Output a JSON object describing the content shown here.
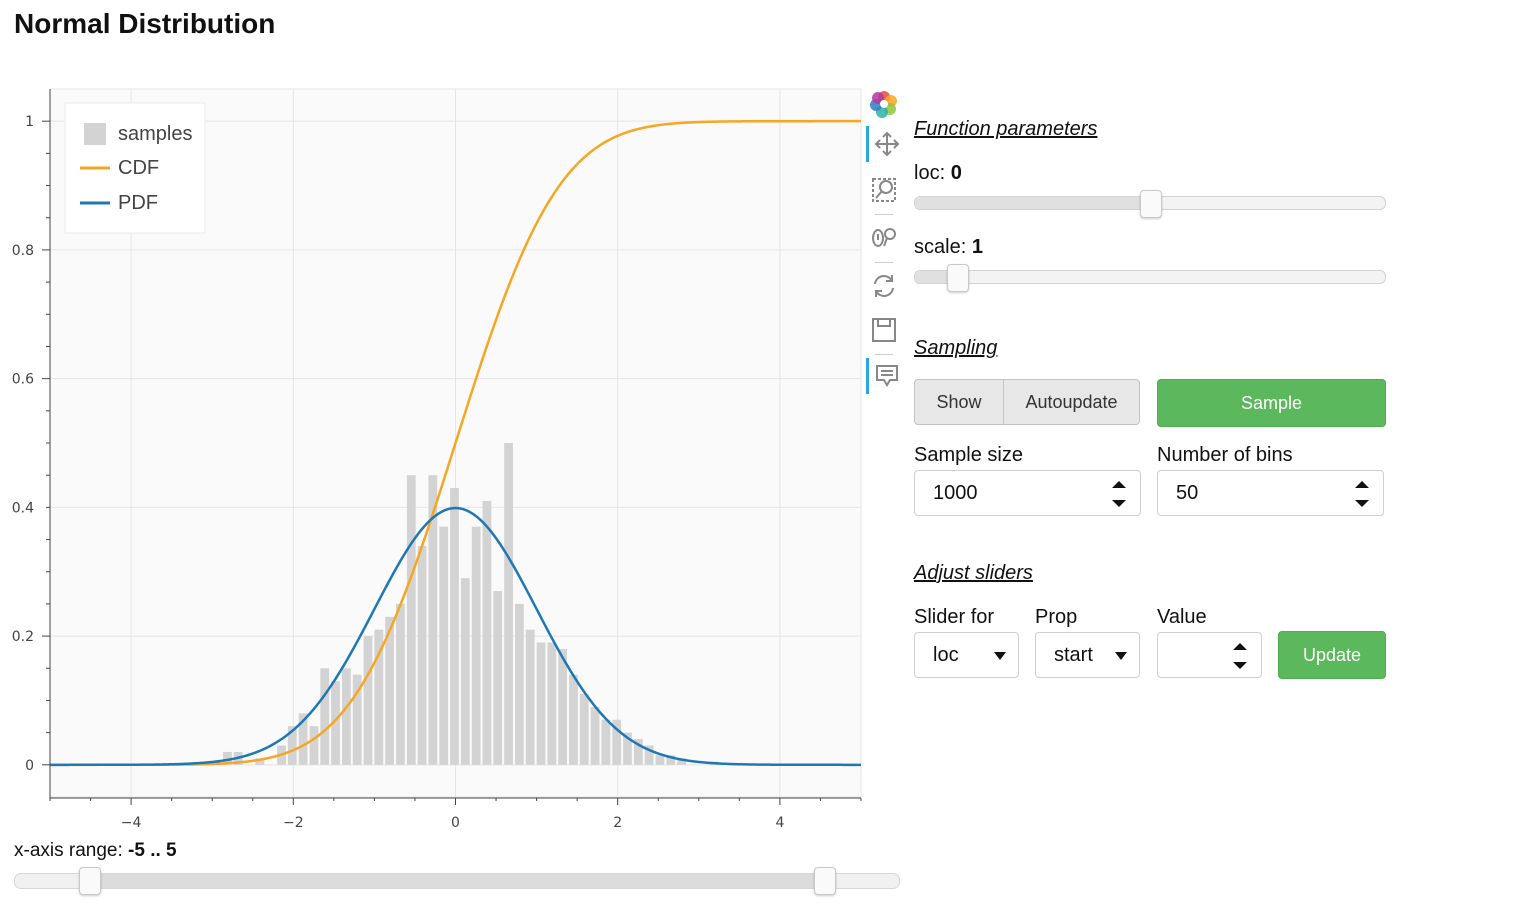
{
  "page_title": "Normal Distribution",
  "colors": {
    "cdf": "#f5a623",
    "pdf": "#1f77b4",
    "bars": "#d3d3d3",
    "accent_green": "#5cb85c",
    "active_tool": "#26aae1"
  },
  "toolbar": {
    "tools": [
      "bokeh-logo-icon",
      "pan-icon",
      "box-zoom-icon",
      "wheel-zoom-icon",
      "reset-icon",
      "save-icon",
      "hover-icon"
    ]
  },
  "xrange": {
    "label": "x-axis range: ",
    "value": "-5 .. 5",
    "start": -5,
    "end": 5
  },
  "function_parameters": {
    "title": "Function parameters",
    "loc": {
      "label": "loc: ",
      "value": "0",
      "min": -5,
      "max": 5,
      "current": 0
    },
    "scale": {
      "label": "scale: ",
      "value": "1",
      "min": 0.5,
      "max": 10,
      "current": 1
    }
  },
  "sampling": {
    "title": "Sampling",
    "show_label": "Show",
    "autoupdate_label": "Autoupdate",
    "sample_label": "Sample",
    "sample_size_label": "Sample size",
    "sample_size_value": "1000",
    "bins_label": "Number of bins",
    "bins_value": "50"
  },
  "adjust_sliders": {
    "title": "Adjust sliders",
    "slider_for_label": "Slider for",
    "slider_for_value": "loc",
    "prop_label": "Prop",
    "prop_value": "start",
    "value_label": "Value",
    "value_value": "",
    "update_label": "Update"
  },
  "chart_data": {
    "type": "line",
    "title": "",
    "xlabel": "",
    "ylabel": "",
    "xlim": [
      -5,
      5
    ],
    "ylim": [
      -0.05,
      1.05
    ],
    "x_ticks": [
      -4,
      -2,
      0,
      2,
      4
    ],
    "y_ticks": [
      0,
      0.2,
      0.4,
      0.6,
      0.8,
      1
    ],
    "grid": true,
    "legend_position": "top-left",
    "legend": [
      "samples",
      "CDF",
      "PDF"
    ],
    "series": [
      {
        "name": "CDF",
        "kind": "line",
        "function": "normal_cdf",
        "loc": 0,
        "scale": 1
      },
      {
        "name": "PDF",
        "kind": "line",
        "function": "normal_pdf",
        "loc": 0,
        "scale": 1
      }
    ],
    "histogram": {
      "name": "samples",
      "bin_width": 0.133,
      "bins": [
        {
          "x": -2.8,
          "y": 0.02
        },
        {
          "x": -2.667,
          "y": 0.02
        },
        {
          "x": -2.4,
          "y": 0.01
        },
        {
          "x": -2.133,
          "y": 0.03
        },
        {
          "x": -2.0,
          "y": 0.06
        },
        {
          "x": -1.867,
          "y": 0.08
        },
        {
          "x": -1.733,
          "y": 0.06
        },
        {
          "x": -1.6,
          "y": 0.15
        },
        {
          "x": -1.467,
          "y": 0.13
        },
        {
          "x": -1.333,
          "y": 0.15
        },
        {
          "x": -1.2,
          "y": 0.14
        },
        {
          "x": -1.067,
          "y": 0.2
        },
        {
          "x": -0.933,
          "y": 0.21
        },
        {
          "x": -0.8,
          "y": 0.23
        },
        {
          "x": -0.667,
          "y": 0.25
        },
        {
          "x": -0.533,
          "y": 0.45
        },
        {
          "x": -0.4,
          "y": 0.34
        },
        {
          "x": -0.267,
          "y": 0.45
        },
        {
          "x": -0.133,
          "y": 0.37
        },
        {
          "x": 0.0,
          "y": 0.43
        },
        {
          "x": 0.133,
          "y": 0.29
        },
        {
          "x": 0.267,
          "y": 0.37
        },
        {
          "x": 0.4,
          "y": 0.41
        },
        {
          "x": 0.533,
          "y": 0.27
        },
        {
          "x": 0.667,
          "y": 0.5
        },
        {
          "x": 0.8,
          "y": 0.25
        },
        {
          "x": 0.933,
          "y": 0.21
        },
        {
          "x": 1.067,
          "y": 0.19
        },
        {
          "x": 1.2,
          "y": 0.19
        },
        {
          "x": 1.333,
          "y": 0.18
        },
        {
          "x": 1.467,
          "y": 0.14
        },
        {
          "x": 1.6,
          "y": 0.11
        },
        {
          "x": 1.733,
          "y": 0.09
        },
        {
          "x": 1.867,
          "y": 0.07
        },
        {
          "x": 2.0,
          "y": 0.07
        },
        {
          "x": 2.133,
          "y": 0.05
        },
        {
          "x": 2.267,
          "y": 0.04
        },
        {
          "x": 2.4,
          "y": 0.03
        },
        {
          "x": 2.533,
          "y": 0.015
        },
        {
          "x": 2.667,
          "y": 0.015
        },
        {
          "x": 2.8,
          "y": 0.01
        },
        {
          "x": 3.2,
          "y": 0.005
        }
      ]
    }
  }
}
